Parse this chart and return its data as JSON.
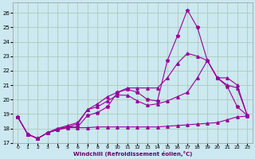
{
  "xlabel": "Windchill (Refroidissement éolien,°C)",
  "background_color": "#cce8f0",
  "grid_color": "#aaccbb",
  "line_color": "#990099",
  "xlim_min": -0.5,
  "xlim_max": 23.5,
  "ylim_min": 17.0,
  "ylim_max": 26.7,
  "xticks": [
    0,
    1,
    2,
    3,
    4,
    5,
    6,
    7,
    8,
    9,
    10,
    11,
    12,
    13,
    14,
    15,
    16,
    17,
    18,
    19,
    20,
    21,
    22,
    23
  ],
  "yticks": [
    17,
    18,
    19,
    20,
    21,
    22,
    23,
    24,
    25,
    26
  ],
  "line1_x": [
    0,
    1,
    2,
    3,
    4,
    5,
    6,
    7,
    8,
    9,
    10,
    11,
    12,
    13,
    14,
    15,
    16,
    17,
    18,
    19,
    20,
    21,
    22,
    23
  ],
  "line1_y": [
    18.8,
    17.6,
    17.3,
    17.7,
    17.9,
    18.1,
    18.1,
    18.9,
    19.1,
    19.5,
    20.5,
    20.7,
    20.5,
    20.0,
    19.9,
    22.7,
    24.4,
    26.2,
    25.0,
    22.7,
    21.5,
    20.9,
    19.5,
    18.9
  ],
  "line2_x": [
    0,
    1,
    2,
    3,
    4,
    5,
    6,
    7,
    8,
    9,
    10,
    11,
    12,
    13,
    14,
    15,
    16,
    17,
    18,
    19,
    20,
    21,
    22,
    23
  ],
  "line2_y": [
    18.8,
    17.6,
    17.3,
    17.7,
    18.0,
    18.1,
    18.3,
    19.3,
    19.5,
    19.9,
    20.3,
    20.3,
    19.9,
    19.6,
    19.7,
    19.9,
    20.2,
    20.5,
    21.5,
    22.7,
    21.5,
    21.0,
    20.8,
    18.9
  ],
  "line3_x": [
    0,
    1,
    2,
    3,
    4,
    5,
    6,
    7,
    8,
    9,
    10,
    11,
    12,
    13,
    14,
    15,
    16,
    17,
    18,
    19,
    20,
    21,
    22,
    23
  ],
  "line3_y": [
    18.8,
    17.6,
    17.3,
    17.7,
    17.9,
    18.05,
    18.05,
    18.05,
    18.1,
    18.1,
    18.1,
    18.1,
    18.1,
    18.1,
    18.1,
    18.15,
    18.2,
    18.25,
    18.3,
    18.35,
    18.4,
    18.6,
    18.8,
    18.85
  ],
  "line4_x": [
    0,
    1,
    2,
    3,
    4,
    5,
    6,
    7,
    8,
    9,
    10,
    11,
    12,
    13,
    14,
    15,
    16,
    17,
    18,
    19,
    20,
    21,
    22,
    23
  ],
  "line4_y": [
    18.8,
    17.6,
    17.3,
    17.7,
    18.0,
    18.2,
    18.4,
    19.3,
    19.7,
    20.2,
    20.5,
    20.8,
    20.8,
    20.8,
    20.8,
    21.5,
    22.5,
    23.2,
    23.0,
    22.7,
    21.5,
    21.5,
    21.0,
    18.9
  ],
  "marker1": "*",
  "marker2": "^",
  "marker3": "^",
  "marker4": "^"
}
